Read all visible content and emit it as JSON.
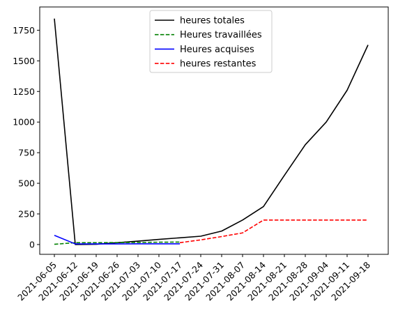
{
  "chart_data": {
    "type": "line",
    "x": [
      "2021-06-05",
      "2021-06-12",
      "2021-06-19",
      "2021-06-26",
      "2021-07-03",
      "2021-07-10",
      "2021-07-17",
      "2021-07-24",
      "2021-07-31",
      "2021-08-07",
      "2021-08-14",
      "2021-08-21",
      "2021-08-28",
      "2021-09-04",
      "2021-09-11",
      "2021-09-18"
    ],
    "ylim": [
      -80,
      1940
    ],
    "y_ticks": [
      0,
      250,
      500,
      750,
      1000,
      1250,
      1500,
      1750
    ],
    "y_tick_labels": [
      "0",
      "250",
      "500",
      "750",
      "1000",
      "1250",
      "1500",
      "1750"
    ],
    "legend_position": "top-center",
    "grid": false,
    "series": [
      {
        "name": "heures totales",
        "color": "#000000",
        "dash": "solid",
        "values": [
          1845,
          0,
          2,
          15,
          28,
          42,
          55,
          68,
          110,
          200,
          310,
          565,
          815,
          1000,
          1260,
          1630
        ]
      },
      {
        "name": "Heures travaillées",
        "color": "#008000",
        "dash": "dashed",
        "values": [
          2,
          15,
          15,
          16,
          17,
          19,
          20,
          null,
          null,
          null,
          null,
          null,
          null,
          null,
          null,
          null
        ]
      },
      {
        "name": "Heures acquises",
        "color": "#0000ff",
        "dash": "solid",
        "values": [
          75,
          5,
          5,
          5,
          6,
          6,
          6,
          null,
          null,
          null,
          null,
          null,
          null,
          null,
          null,
          null
        ]
      },
      {
        "name": "heures restantes",
        "color": "#ff0000",
        "dash": "dashed",
        "values": [
          null,
          null,
          null,
          null,
          null,
          null,
          15,
          38,
          65,
          95,
          200,
          200,
          200,
          200,
          200,
          200
        ]
      }
    ]
  }
}
